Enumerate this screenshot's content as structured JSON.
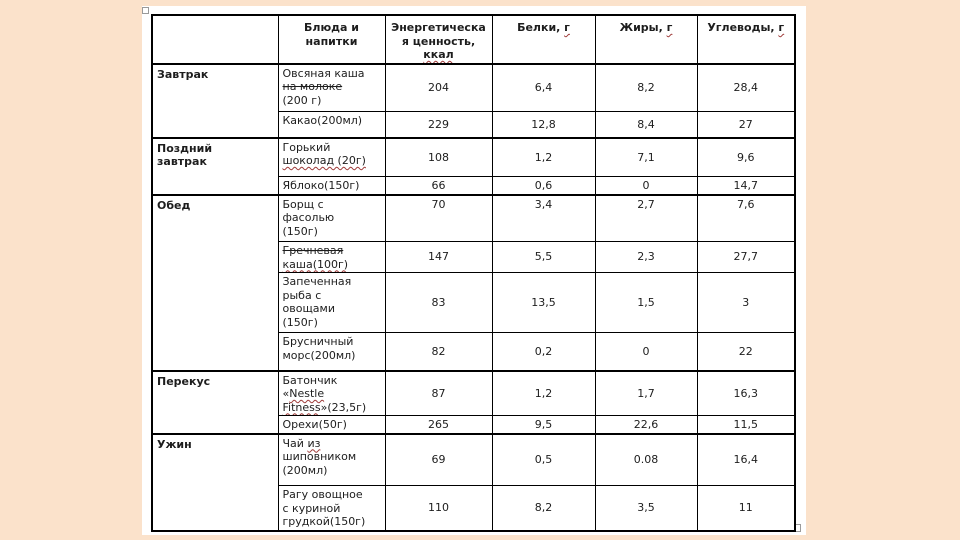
{
  "page": {
    "background_color": "#fbe2cb",
    "canvas_color": "#ffffff",
    "border_color": "#000000",
    "spellcheck_underline_color": "#9e3a38"
  },
  "table": {
    "headers": [
      {
        "id": "meal",
        "label_lines": []
      },
      {
        "id": "dish",
        "label_lines": [
          [
            "Блюда и"
          ],
          [
            "напитки"
          ]
        ]
      },
      {
        "id": "energy",
        "label_lines": [
          [
            "Энергетическа"
          ],
          [
            "я ценность,"
          ],
          [
            {
              "text": "ккал",
              "deco": "wavy"
            }
          ]
        ]
      },
      {
        "id": "protein",
        "label_lines": [
          [
            "Белки, ",
            {
              "text": "г",
              "deco": "wavy"
            }
          ]
        ]
      },
      {
        "id": "fat",
        "label_lines": [
          [
            "Жиры, ",
            {
              "text": "г",
              "deco": "wavy"
            }
          ]
        ]
      },
      {
        "id": "carbs",
        "label_lines": [
          [
            "Углеводы, ",
            {
              "text": "г",
              "deco": "wavy"
            }
          ]
        ]
      }
    ],
    "groups": [
      {
        "meal": "Завтрак",
        "meal_lines": [
          [
            "Завтрак"
          ]
        ],
        "rows": [
          {
            "dish": "Овсяная каша на молоке (200 г)",
            "dish_lines": [
              [
                "Овсяная каша"
              ],
              [
                {
                  "text": "на молоке",
                  "deco": "strike"
                }
              ],
              [
                "(200 г)"
              ]
            ],
            "energy": "204",
            "protein": "6,4",
            "fat": "8,2",
            "carbs": "28,4"
          },
          {
            "dish": "Какао(200мл)",
            "dish_lines": [
              [
                "Какао(200мл)"
              ]
            ],
            "energy": "229",
            "protein": "12,8",
            "fat": "8,4",
            "carbs": "27"
          }
        ]
      },
      {
        "meal": "Поздний завтрак",
        "meal_lines": [
          [
            "Поздний"
          ],
          [
            "завтрак"
          ]
        ],
        "rows": [
          {
            "dish": "Горький шоколад (20г)",
            "dish_lines": [
              [
                "Горький"
              ],
              [
                {
                  "text": "шоколад (20г)",
                  "deco": "wavy"
                }
              ]
            ],
            "energy": "108",
            "protein": "1,2",
            "fat": "7,1",
            "carbs": "9,6"
          },
          {
            "dish": "Яблоко(150г)",
            "dish_lines": [
              [
                "Яблоко(150г)"
              ]
            ],
            "energy": "66",
            "protein": "0,6",
            "fat": "0",
            "carbs": "14,7"
          }
        ]
      },
      {
        "meal": "Обед",
        "meal_lines": [
          [
            "Обед"
          ]
        ],
        "rows": [
          {
            "dish": "Борщ с фасолью (150г)",
            "dish_lines": [
              [
                "Борщ с"
              ],
              [
                "фасолью"
              ],
              [
                "(150г)"
              ]
            ],
            "energy": "70",
            "protein": "3,4",
            "fat": "2,7",
            "carbs": "7,6",
            "valign": "top"
          },
          {
            "dish": "Гречневая каша(100г)",
            "dish_lines": [
              [
                {
                  "text": "Гречневая",
                  "deco": "strike"
                }
              ],
              [
                {
                  "text": "каша(100г)",
                  "deco": "wavy"
                }
              ]
            ],
            "energy": "147",
            "protein": "5,5",
            "fat": "2,3",
            "carbs": "27,7"
          },
          {
            "dish": "Запеченная рыба с овощами (150г)",
            "dish_lines": [
              [
                "Запеченная"
              ],
              [
                "рыба с"
              ],
              [
                "овощами"
              ],
              [
                "(150г)"
              ]
            ],
            "energy": "83",
            "protein": "13,5",
            "fat": "1,5",
            "carbs": "3"
          },
          {
            "dish": "Брусничный морс(200мл)",
            "dish_lines": [
              [
                "Брусничный"
              ],
              [
                "морс(200мл)"
              ]
            ],
            "energy": "82",
            "protein": "0,2",
            "fat": "0",
            "carbs": "22"
          }
        ]
      },
      {
        "meal": "Перекус",
        "meal_lines": [
          [
            "Перекус"
          ]
        ],
        "rows": [
          {
            "dish": "Батончик «Nestle Fitness»(23,5г)",
            "dish_lines": [
              [
                "Батончик"
              ],
              [
                "«",
                {
                  "text": "Nestle",
                  "deco": "wavy"
                }
              ],
              [
                {
                  "text": "Fitness",
                  "deco": "wavy"
                },
                "»(23,5г)"
              ]
            ],
            "energy": "87",
            "protein": "1,2",
            "fat": "1,7",
            "carbs": "16,3"
          },
          {
            "dish": "Орехи(50г)",
            "dish_lines": [
              [
                "Орехи(50г)"
              ]
            ],
            "energy": "265",
            "protein": "9,5",
            "fat": "22,6",
            "carbs": "11,5"
          }
        ]
      },
      {
        "meal": "Ужин",
        "meal_lines": [
          [
            "Ужин"
          ]
        ],
        "rows": [
          {
            "dish": "Чай из шиповником (200мл)",
            "dish_lines": [
              [
                "Чай ",
                {
                  "text": "из",
                  "deco": "wavy"
                }
              ],
              [
                "шиповником"
              ],
              [
                "(200мл)"
              ]
            ],
            "energy": "69",
            "protein": "0,5",
            "fat": "0.08",
            "carbs": "16,4"
          },
          {
            "dish": "Рагу овощное с куриной грудкой(150г)",
            "dish_lines": [
              [
                "Рагу овощное"
              ],
              [
                "с куриной"
              ],
              [
                "грудкой(150г)"
              ]
            ],
            "energy": "110",
            "protein": "8,2",
            "fat": "3,5",
            "carbs": "11"
          }
        ]
      }
    ]
  }
}
